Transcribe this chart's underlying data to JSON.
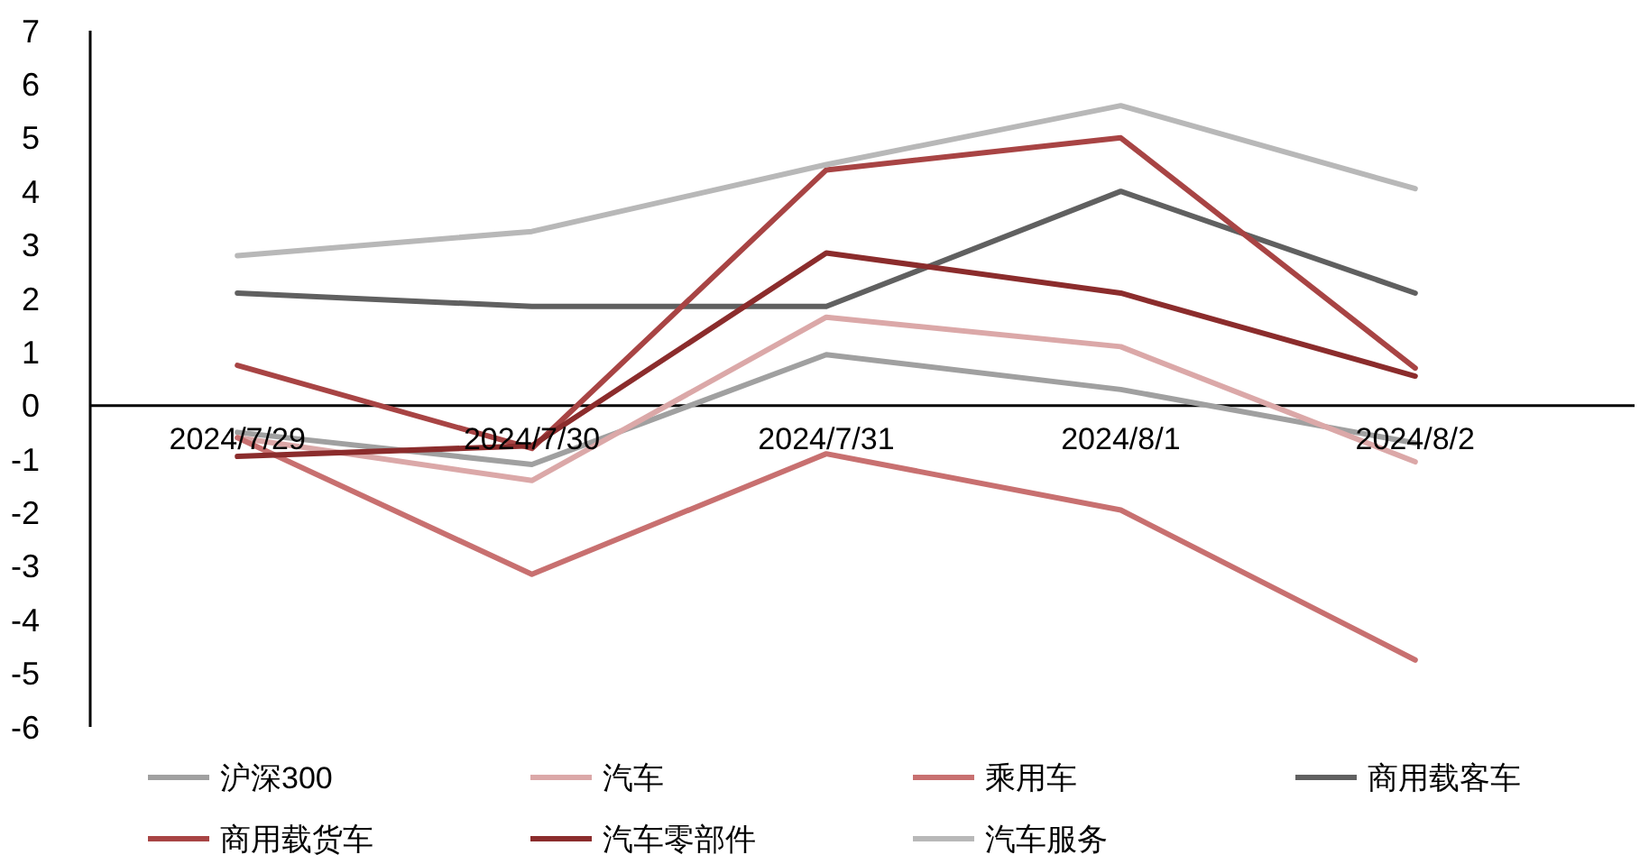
{
  "chart_data": {
    "type": "line",
    "categories": [
      "2024/7/29",
      "2024/7/30",
      "2024/7/31",
      "2024/8/1",
      "2024/8/2"
    ],
    "ylim": [
      -6,
      7
    ],
    "yticks": [
      -6,
      -5,
      -4,
      -3,
      -2,
      -1,
      0,
      1,
      2,
      3,
      4,
      5,
      6,
      7
    ],
    "grid": false,
    "legend": "bottom",
    "marker": "none",
    "line_style": "solid",
    "series": [
      {
        "name": "沪深300",
        "color": "#a0a0a0",
        "values": [
          -0.5,
          -1.1,
          0.95,
          0.3,
          -0.7
        ]
      },
      {
        "name": "汽车",
        "color": "#dba8a8",
        "values": [
          -0.6,
          -1.4,
          1.65,
          1.1,
          -1.05
        ]
      },
      {
        "name": "乘用车",
        "color": "#c87070",
        "values": [
          -0.6,
          -3.15,
          -0.9,
          -1.95,
          -4.75
        ]
      },
      {
        "name": "商用载客车",
        "color": "#606060",
        "values": [
          2.1,
          1.85,
          1.85,
          4.0,
          2.1
        ]
      },
      {
        "name": "商用载货车",
        "color": "#a84444",
        "values": [
          0.75,
          -0.8,
          4.4,
          5.0,
          0.7
        ]
      },
      {
        "name": "汽车零部件",
        "color": "#8b2c2c",
        "values": [
          -0.95,
          -0.75,
          2.85,
          2.1,
          0.55
        ]
      },
      {
        "name": "汽车服务",
        "color": "#b8b8b8",
        "values": [
          2.8,
          3.25,
          4.5,
          5.6,
          4.05
        ]
      }
    ]
  }
}
